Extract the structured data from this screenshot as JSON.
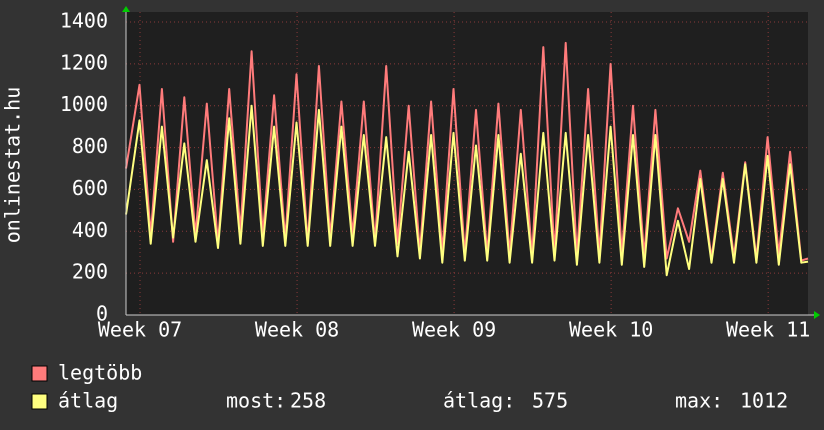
{
  "chart_data": {
    "type": "line",
    "y_label": "onlinestat.hu",
    "x": [
      0,
      0.6,
      1.1,
      1.6,
      2.1,
      2.6,
      3.1,
      3.6,
      4.1,
      4.6,
      5.1,
      5.6,
      6.1,
      6.6,
      7.1,
      7.6,
      8.1,
      8.6,
      9.1,
      9.6,
      10.1,
      10.6,
      11.1,
      11.6,
      12.1,
      12.6,
      13.1,
      13.6,
      14.1,
      14.6,
      15.1,
      15.6,
      16.1,
      16.6,
      17.1,
      17.6,
      18.1,
      18.6,
      19.1,
      19.6,
      20.1,
      20.6,
      21.1,
      21.6,
      22.1,
      22.6,
      23.1,
      23.6,
      24.1,
      24.6,
      25.1,
      25.6,
      26.1,
      26.6,
      27.1,
      27.6,
      28.1,
      28.6,
      29.1,
      29.6,
      30.1,
      30.4
    ],
    "series": [
      {
        "name": "legtöbb",
        "color": "#ff7b7b",
        "values": [
          700,
          1100,
          380,
          1080,
          350,
          1040,
          380,
          1010,
          340,
          1080,
          400,
          1260,
          380,
          1050,
          360,
          1150,
          340,
          1190,
          370,
          1020,
          380,
          1020,
          350,
          1190,
          340,
          1000,
          300,
          1020,
          300,
          1080,
          290,
          980,
          290,
          1010,
          290,
          980,
          280,
          1280,
          290,
          1300,
          280,
          1080,
          290,
          1200,
          290,
          1000,
          280,
          980,
          270,
          510,
          350,
          690,
          270,
          680,
          280,
          730,
          270,
          850,
          290,
          780,
          260,
          270
        ]
      },
      {
        "name": "átlag",
        "color": "#ffff80",
        "values": [
          480,
          930,
          340,
          900,
          370,
          820,
          350,
          740,
          320,
          940,
          340,
          1000,
          330,
          900,
          330,
          920,
          330,
          980,
          330,
          900,
          330,
          860,
          330,
          850,
          280,
          780,
          270,
          860,
          250,
          870,
          260,
          810,
          260,
          860,
          250,
          770,
          250,
          870,
          260,
          870,
          240,
          860,
          250,
          900,
          240,
          860,
          230,
          860,
          190,
          450,
          220,
          650,
          250,
          650,
          250,
          720,
          250,
          760,
          240,
          720,
          250,
          255
        ]
      }
    ],
    "stats": [
      {
        "label": "most:",
        "value": 258
      },
      {
        "label": "átlag:",
        "value": 575
      },
      {
        "label": "max:",
        "value": 1012
      }
    ],
    "xlim": [
      0,
      30.4
    ],
    "ylim": [
      0,
      1400
    ],
    "xticks": [
      {
        "value": 0.625,
        "label": "Week 07"
      },
      {
        "value": 7.625,
        "label": "Week 08"
      },
      {
        "value": 14.625,
        "label": "Week 09"
      },
      {
        "value": 21.625,
        "label": "Week 10"
      },
      {
        "value": 28.625,
        "label": "Week 11"
      }
    ],
    "yticks": [
      0,
      200,
      400,
      600,
      800,
      1000,
      1200,
      1400
    ],
    "grid": true
  }
}
